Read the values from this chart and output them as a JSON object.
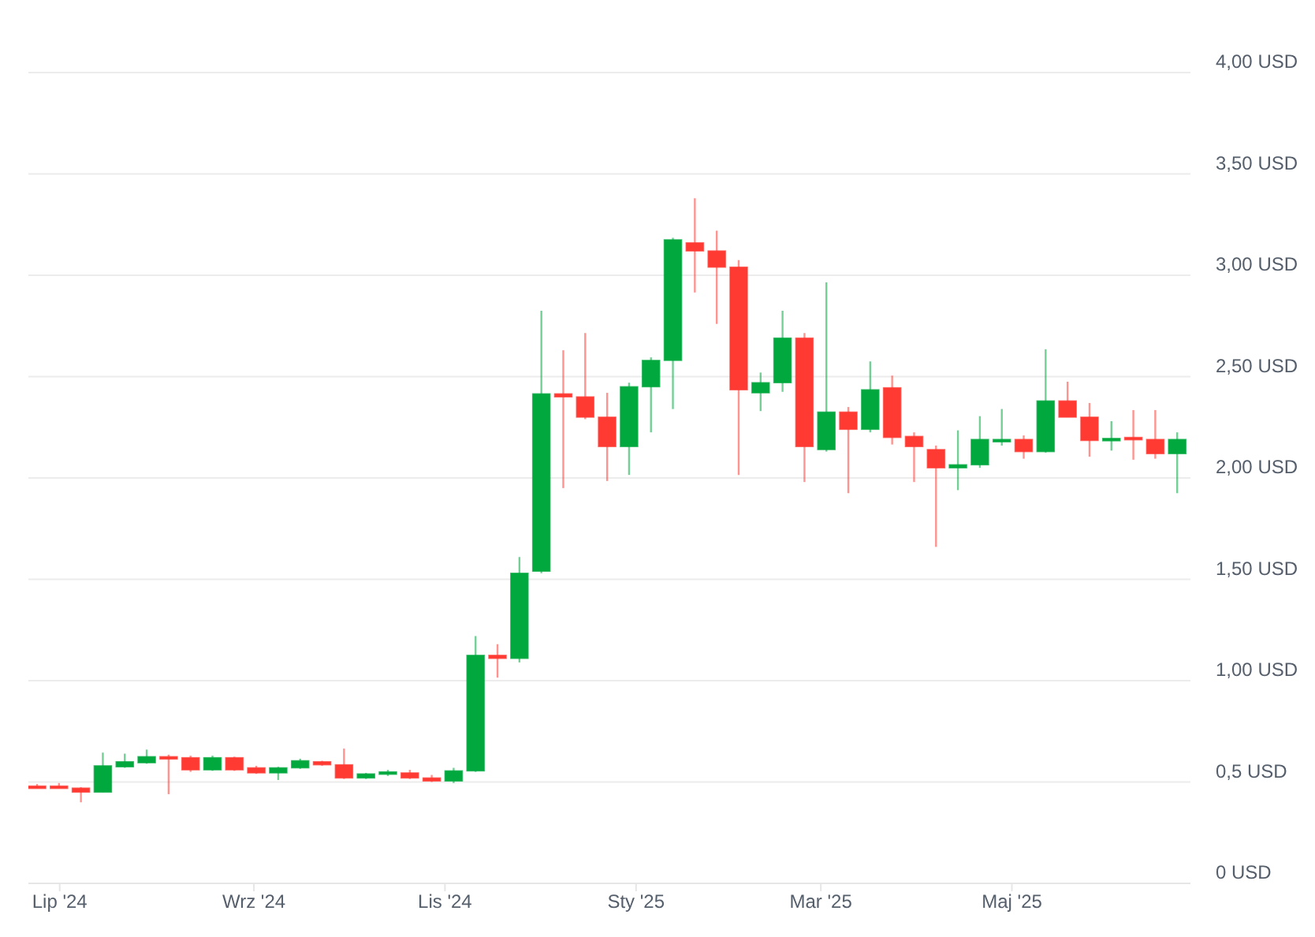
{
  "chart_data": {
    "type": "candlestick",
    "x": [
      "2024-06-24",
      "2024-07-01",
      "2024-07-08",
      "2024-07-15",
      "2024-07-22",
      "2024-07-29",
      "2024-08-05",
      "2024-08-12",
      "2024-08-19",
      "2024-08-26",
      "2024-09-02",
      "2024-09-09",
      "2024-09-16",
      "2024-09-23",
      "2024-09-30",
      "2024-10-07",
      "2024-10-14",
      "2024-10-21",
      "2024-10-28",
      "2024-11-04",
      "2024-11-11",
      "2024-11-18",
      "2024-11-25",
      "2024-12-02",
      "2024-12-09",
      "2024-12-16",
      "2024-12-23",
      "2024-12-30",
      "2025-01-06",
      "2025-01-13",
      "2025-01-20",
      "2025-01-27",
      "2025-02-03",
      "2025-02-10",
      "2025-02-17",
      "2025-02-24",
      "2025-03-03",
      "2025-03-10",
      "2025-03-17",
      "2025-03-24",
      "2025-03-31",
      "2025-04-07",
      "2025-04-14",
      "2025-04-21",
      "2025-04-28",
      "2025-05-05",
      "2025-05-12",
      "2025-05-19",
      "2025-05-26",
      "2025-06-02",
      "2025-06-09",
      "2025-06-16",
      "2025-06-23"
    ],
    "ohlc": [
      [
        0.48,
        0.49,
        0.47,
        0.475
      ],
      [
        0.48,
        0.495,
        0.475,
        0.475
      ],
      [
        0.47,
        0.475,
        0.4,
        0.45
      ],
      [
        0.45,
        0.645,
        0.45,
        0.58
      ],
      [
        0.575,
        0.64,
        0.57,
        0.6
      ],
      [
        0.595,
        0.66,
        0.59,
        0.625
      ],
      [
        0.625,
        0.635,
        0.44,
        0.615
      ],
      [
        0.62,
        0.63,
        0.55,
        0.56
      ],
      [
        0.56,
        0.63,
        0.555,
        0.62
      ],
      [
        0.62,
        0.625,
        0.555,
        0.56
      ],
      [
        0.57,
        0.58,
        0.54,
        0.545
      ],
      [
        0.545,
        0.575,
        0.51,
        0.57
      ],
      [
        0.57,
        0.615,
        0.565,
        0.605
      ],
      [
        0.6,
        0.605,
        0.58,
        0.585
      ],
      [
        0.585,
        0.665,
        0.515,
        0.52
      ],
      [
        0.52,
        0.545,
        0.515,
        0.54
      ],
      [
        0.54,
        0.56,
        0.53,
        0.55
      ],
      [
        0.545,
        0.56,
        0.515,
        0.52
      ],
      [
        0.52,
        0.535,
        0.5,
        0.505
      ],
      [
        0.505,
        0.57,
        0.495,
        0.555
      ],
      [
        0.555,
        1.22,
        0.55,
        1.125
      ],
      [
        1.125,
        1.18,
        1.015,
        1.11
      ],
      [
        1.11,
        1.61,
        1.09,
        1.53
      ],
      [
        1.54,
        2.825,
        1.53,
        2.415
      ],
      [
        2.415,
        2.63,
        1.95,
        2.4
      ],
      [
        2.4,
        2.715,
        2.29,
        2.3
      ],
      [
        2.3,
        2.42,
        1.985,
        2.155
      ],
      [
        2.155,
        2.47,
        2.015,
        2.45
      ],
      [
        2.45,
        2.595,
        2.225,
        2.58
      ],
      [
        2.58,
        3.185,
        2.34,
        3.175
      ],
      [
        3.16,
        3.38,
        2.915,
        3.12
      ],
      [
        3.12,
        3.22,
        2.76,
        3.04
      ],
      [
        3.04,
        3.075,
        2.015,
        2.435
      ],
      [
        2.42,
        2.52,
        2.33,
        2.47
      ],
      [
        2.47,
        2.825,
        2.425,
        2.69
      ],
      [
        2.69,
        2.715,
        1.98,
        2.155
      ],
      [
        2.14,
        2.965,
        2.13,
        2.325
      ],
      [
        2.325,
        2.35,
        1.925,
        2.24
      ],
      [
        2.24,
        2.575,
        2.225,
        2.435
      ],
      [
        2.445,
        2.505,
        2.165,
        2.2
      ],
      [
        2.205,
        2.225,
        1.98,
        2.155
      ],
      [
        2.14,
        2.16,
        1.66,
        2.05
      ],
      [
        2.05,
        2.235,
        1.94,
        2.065
      ],
      [
        2.065,
        2.305,
        2.05,
        2.19
      ],
      [
        2.185,
        2.34,
        2.16,
        2.19
      ],
      [
        2.19,
        2.21,
        2.095,
        2.13
      ],
      [
        2.13,
        2.635,
        2.125,
        2.38
      ],
      [
        2.38,
        2.475,
        2.3,
        2.3
      ],
      [
        2.3,
        2.37,
        2.105,
        2.185
      ],
      [
        2.185,
        2.28,
        2.135,
        2.195
      ],
      [
        2.2,
        2.335,
        2.09,
        2.195
      ],
      [
        2.19,
        2.335,
        2.095,
        2.12
      ],
      [
        2.12,
        2.225,
        1.925,
        2.19
      ]
    ],
    "colors": [
      "#ff3a33",
      "#ff3a33",
      "#ff3a33",
      "#00a83e",
      "#00a83e",
      "#00a83e",
      "#ff3a33",
      "#ff3a33",
      "#00a83e",
      "#ff3a33",
      "#ff3a33",
      "#00a83e",
      "#00a83e",
      "#ff3a33",
      "#ff3a33",
      "#00a83e",
      "#00a83e",
      "#ff3a33",
      "#ff3a33",
      "#00a83e",
      "#00a83e",
      "#ff3a33",
      "#00a83e",
      "#00a83e",
      "#ff3a33",
      "#ff3a33",
      "#ff3a33",
      "#00a83e",
      "#00a83e",
      "#00a83e",
      "#ff3a33",
      "#ff3a33",
      "#ff3a33",
      "#00a83e",
      "#00a83e",
      "#ff3a33",
      "#00a83e",
      "#ff3a33",
      "#00a83e",
      "#ff3a33",
      "#ff3a33",
      "#ff3a33",
      "#00a83e",
      "#00a83e",
      "#00a83e",
      "#ff3a33",
      "#00a83e",
      "#ff3a33",
      "#ff3a33",
      "#00a83e",
      "#ff3a33",
      "#ff3a33",
      "#00a83e"
    ],
    "xlim": [
      "2024-06-21",
      "2025-06-27"
    ],
    "xticks": [
      {
        "value": "2024-07-01",
        "label": "Lip '24"
      },
      {
        "value": "2024-09-01",
        "label": "Wrz '24"
      },
      {
        "value": "2024-11-01",
        "label": "Lis '24"
      },
      {
        "value": "2025-01-01",
        "label": "Sty '25"
      },
      {
        "value": "2025-03-01",
        "label": "Mar '25"
      },
      {
        "value": "2025-05-01",
        "label": "Maj '25"
      }
    ],
    "ylim": [
      0,
      4
    ],
    "yticks": [
      {
        "value": 0,
        "label": "0 USD"
      },
      {
        "value": 0.5,
        "label": "0,5 USD"
      },
      {
        "value": 1,
        "label": "1,00 USD"
      },
      {
        "value": 1.5,
        "label": "1,50 USD"
      },
      {
        "value": 2,
        "label": "2,00 USD"
      },
      {
        "value": 2.5,
        "label": "2,50 USD"
      },
      {
        "value": 3,
        "label": "3,00 USD"
      },
      {
        "value": 3.5,
        "label": "3,50 USD"
      },
      {
        "value": 4,
        "label": "4,00 USD"
      }
    ],
    "grid": "y"
  }
}
